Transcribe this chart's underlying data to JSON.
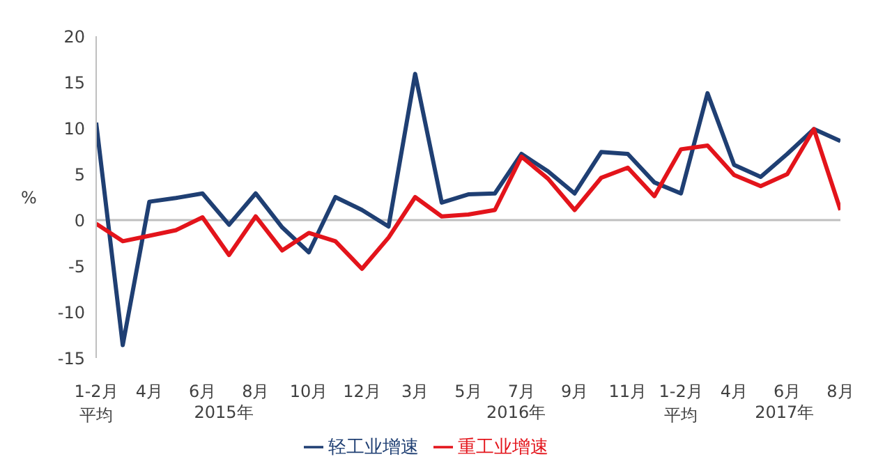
{
  "chart_data": {
    "type": "line",
    "ylabel": "%",
    "categories": [
      "1-2月平均",
      null,
      "4月",
      null,
      "6月",
      null,
      "8月",
      null,
      "10月",
      null,
      "12月",
      null,
      "3月",
      null,
      "5月",
      null,
      "7月",
      null,
      "9月",
      null,
      "11月",
      null,
      "1-2月平均",
      null,
      "4月",
      null,
      "6月",
      null,
      "8月"
    ],
    "series": [
      {
        "name": "轻工业增速",
        "color": "#1f3f73",
        "values": [
          10.6,
          -13.6,
          2.0,
          2.4,
          2.9,
          -0.5,
          2.9,
          -0.8,
          -3.5,
          2.5,
          1.1,
          -0.7,
          15.9,
          1.9,
          2.8,
          2.9,
          7.2,
          5.3,
          2.9,
          7.4,
          7.2,
          4.1,
          2.9,
          13.8,
          6.0,
          4.7,
          7.2,
          9.9,
          8.6
        ]
      },
      {
        "name": "重工业增速",
        "color": "#e3141b",
        "values": [
          -0.4,
          -2.3,
          -1.7,
          -1.1,
          0.3,
          -3.8,
          0.4,
          -3.3,
          -1.4,
          -2.3,
          -5.3,
          -1.9,
          2.5,
          0.4,
          0.6,
          1.1,
          6.9,
          4.5,
          1.1,
          4.6,
          5.7,
          2.6,
          7.7,
          8.1,
          4.9,
          3.7,
          5.0,
          9.9,
          1.1
        ]
      }
    ],
    "ylim": [
      -15,
      20
    ],
    "yticks": [
      -15,
      -10,
      -5,
      0,
      5,
      10,
      15,
      20
    ],
    "ref_lines": [
      {
        "axis": "y",
        "value": 0,
        "color": "#bfbfbf"
      }
    ],
    "annotations": [
      "2015年",
      "2016年",
      "2017年"
    ],
    "legend": "bottom",
    "grid": false,
    "marker": "none",
    "line_style": "solid"
  }
}
